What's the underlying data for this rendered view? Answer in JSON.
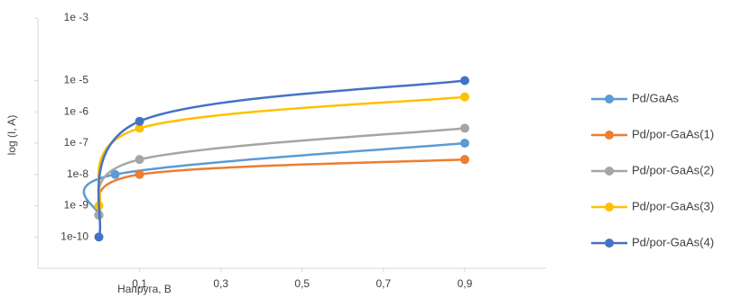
{
  "chart_data": {
    "type": "line",
    "x_label": "Напруга, В",
    "y_label": "log (I, A)",
    "log_y": true,
    "grid": false,
    "legend_position": "right",
    "xlim": [
      -0.15,
      1.1
    ],
    "ylim": [
      1e-11,
      0.001
    ],
    "xticks": [
      {
        "value": 0.1,
        "label": "0,1"
      },
      {
        "value": 0.3,
        "label": "0,3"
      },
      {
        "value": 0.5,
        "label": "0,5"
      },
      {
        "value": 0.7,
        "label": "0,7"
      },
      {
        "value": 0.9,
        "label": "0,9"
      }
    ],
    "yticks": [
      {
        "value": 1e-10,
        "label": "1e-10"
      },
      {
        "value": 1e-09,
        "label": "1e -9"
      },
      {
        "value": 1e-08,
        "label": "1e-8"
      },
      {
        "value": 1e-07,
        "label": "1e -7"
      },
      {
        "value": 1e-06,
        "label": "1e -6"
      },
      {
        "value": 1e-05,
        "label": "1e -5"
      },
      {
        "value": 0.001,
        "label": "1e -3"
      }
    ],
    "series": [
      {
        "name": "Pd/GaAs",
        "color": "#5b9bd5",
        "x": [
          0,
          0.04,
          0.9
        ],
        "values": [
          5e-10,
          1e-08,
          1e-07
        ]
      },
      {
        "name": "Pd/por-GaAs(1)",
        "color": "#ed7d31",
        "x": [
          0,
          0.1,
          0.9
        ],
        "values": [
          5e-10,
          1e-08,
          3e-08
        ]
      },
      {
        "name": "Pd/por-GaAs(2)",
        "color": "#a5a5a5",
        "x": [
          0,
          0.1,
          0.9
        ],
        "values": [
          5e-10,
          3e-08,
          3e-07
        ]
      },
      {
        "name": "Pd/por-GaAs(3)",
        "color": "#ffc000",
        "x": [
          0,
          0.1,
          0.9
        ],
        "values": [
          1e-09,
          3e-07,
          3e-06
        ]
      },
      {
        "name": "Pd/por-GaAs(4)",
        "color": "#4472c4",
        "x": [
          0,
          0.1,
          0.9
        ],
        "values": [
          1e-10,
          5e-07,
          1e-05
        ]
      }
    ]
  }
}
